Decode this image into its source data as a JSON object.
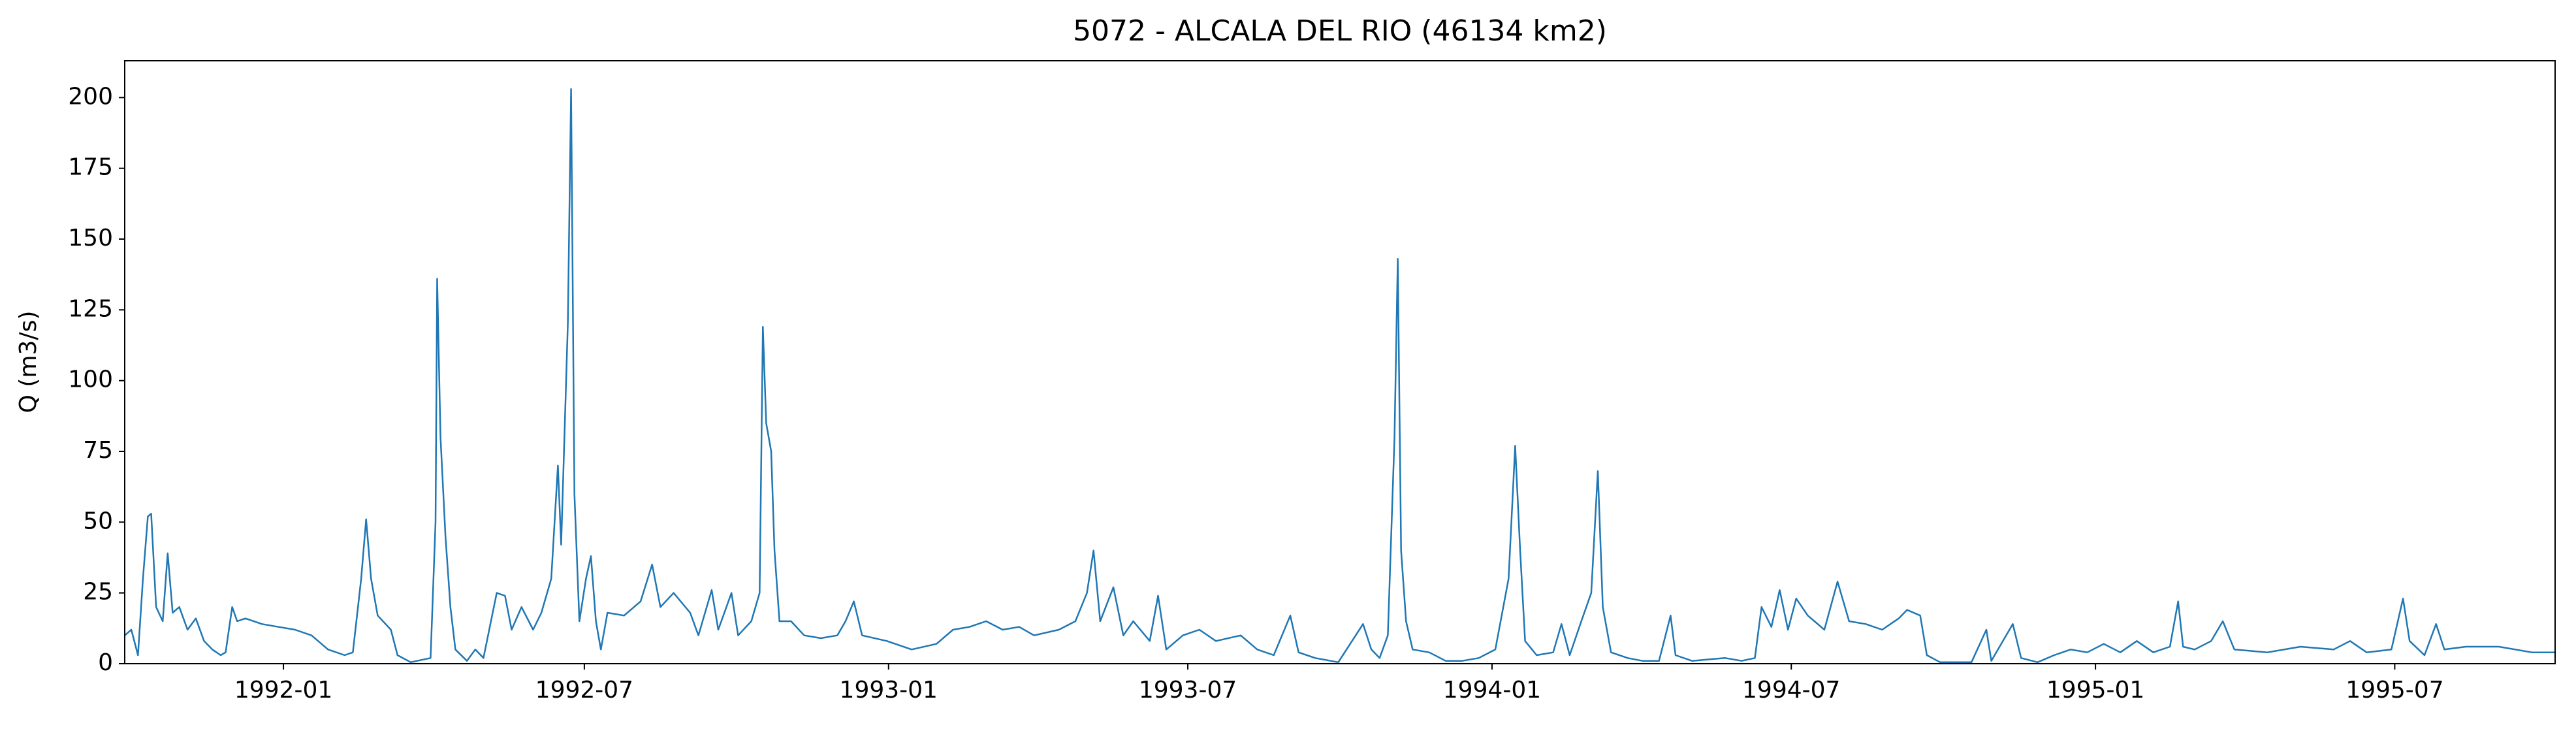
{
  "chart_data": {
    "type": "line",
    "title": "5072 - ALCALA DEL RIO (46134 km2)",
    "y_label": "Q (m3/s)",
    "color": "#1f77b4",
    "xlim": [
      "1991-09-27",
      "1995-10-06"
    ],
    "xticks": [
      {
        "value": "1992-01-01",
        "label": "1992-01"
      },
      {
        "value": "1992-07-01",
        "label": "1992-07"
      },
      {
        "value": "1993-01-01",
        "label": "1993-01"
      },
      {
        "value": "1993-07-01",
        "label": "1993-07"
      },
      {
        "value": "1994-01-01",
        "label": "1994-01"
      },
      {
        "value": "1994-07-01",
        "label": "1994-07"
      },
      {
        "value": "1995-01-01",
        "label": "1995-01"
      },
      {
        "value": "1995-07-01",
        "label": "1995-07"
      }
    ],
    "ylim": [
      0,
      213
    ],
    "yticks": [
      0,
      25,
      50,
      75,
      100,
      125,
      150,
      175,
      200
    ],
    "x": [
      "1991-09-27",
      "1991-10-01",
      "1991-10-05",
      "1991-10-08",
      "1991-10-11",
      "1991-10-13",
      "1991-10-16",
      "1991-10-20",
      "1991-10-23",
      "1991-10-26",
      "1991-10-30",
      "1991-11-04",
      "1991-11-09",
      "1991-11-14",
      "1991-11-19",
      "1991-11-24",
      "1991-11-27",
      "1991-12-01",
      "1991-12-04",
      "1991-12-09",
      "1991-12-19",
      "1991-12-29",
      "1992-01-08",
      "1992-01-18",
      "1992-01-28",
      "1992-02-07",
      "1992-02-12",
      "1992-02-17",
      "1992-02-20",
      "1992-02-23",
      "1992-02-27",
      "1992-03-06",
      "1992-03-10",
      "1992-03-18",
      "1992-03-30",
      "1992-04-02",
      "1992-04-03",
      "1992-04-05",
      "1992-04-08",
      "1992-04-11",
      "1992-04-14",
      "1992-04-21",
      "1992-04-26",
      "1992-05-01",
      "1992-05-09",
      "1992-05-14",
      "1992-05-18",
      "1992-05-24",
      "1992-05-31",
      "1992-06-05",
      "1992-06-11",
      "1992-06-15",
      "1992-06-17",
      "1992-06-21",
      "1992-06-23",
      "1992-06-25",
      "1992-06-28",
      "1992-07-02",
      "1992-07-05",
      "1992-07-08",
      "1992-07-11",
      "1992-07-15",
      "1992-07-25",
      "1992-08-04",
      "1992-08-11",
      "1992-08-16",
      "1992-08-24",
      "1992-09-03",
      "1992-09-08",
      "1992-09-16",
      "1992-09-20",
      "1992-09-28",
      "1992-10-02",
      "1992-10-10",
      "1992-10-15",
      "1992-10-17",
      "1992-10-19",
      "1992-10-22",
      "1992-10-24",
      "1992-10-27",
      "1992-11-03",
      "1992-11-11",
      "1992-11-21",
      "1992-12-01",
      "1992-12-06",
      "1992-12-11",
      "1992-12-16",
      "1992-12-31",
      "1993-01-15",
      "1993-01-30",
      "1993-02-09",
      "1993-02-19",
      "1993-03-01",
      "1993-03-11",
      "1993-03-21",
      "1993-03-30",
      "1993-04-14",
      "1993-04-24",
      "1993-05-01",
      "1993-05-05",
      "1993-05-09",
      "1993-05-17",
      "1993-05-23",
      "1993-05-29",
      "1993-06-08",
      "1993-06-13",
      "1993-06-18",
      "1993-06-28",
      "1993-07-08",
      "1993-07-18",
      "1993-08-02",
      "1993-08-12",
      "1993-08-22",
      "1993-09-01",
      "1993-09-06",
      "1993-09-16",
      "1993-09-30",
      "1993-10-15",
      "1993-10-20",
      "1993-10-25",
      "1993-10-30",
      "1993-11-03",
      "1993-11-05",
      "1993-11-07",
      "1993-11-10",
      "1993-11-14",
      "1993-11-24",
      "1993-12-04",
      "1993-12-14",
      "1993-12-24",
      "1994-01-03",
      "1994-01-11",
      "1994-01-15",
      "1994-01-18",
      "1994-01-21",
      "1994-01-28",
      "1994-02-07",
      "1994-02-12",
      "1994-02-17",
      "1994-02-24",
      "1994-03-02",
      "1994-03-06",
      "1994-03-09",
      "1994-03-14",
      "1994-03-24",
      "1994-04-02",
      "1994-04-12",
      "1994-04-19",
      "1994-04-22",
      "1994-05-02",
      "1994-05-22",
      "1994-06-01",
      "1994-06-09",
      "1994-06-13",
      "1994-06-19",
      "1994-06-24",
      "1994-06-29",
      "1994-07-04",
      "1994-07-11",
      "1994-07-21",
      "1994-07-29",
      "1994-08-05",
      "1994-08-15",
      "1994-08-25",
      "1994-09-04",
      "1994-09-09",
      "1994-09-17",
      "1994-09-21",
      "1994-09-29",
      "1994-10-18",
      "1994-10-27",
      "1994-10-30",
      "1994-11-12",
      "1994-11-17",
      "1994-11-27",
      "1994-12-07",
      "1994-12-17",
      "1994-12-27",
      "1995-01-06",
      "1995-01-16",
      "1995-01-26",
      "1995-02-05",
      "1995-02-15",
      "1995-02-20",
      "1995-02-23",
      "1995-03-02",
      "1995-03-12",
      "1995-03-19",
      "1995-03-26",
      "1995-04-15",
      "1995-05-05",
      "1995-05-25",
      "1995-06-04",
      "1995-06-14",
      "1995-06-29",
      "1995-07-06",
      "1995-07-10",
      "1995-07-19",
      "1995-07-26",
      "1995-07-31",
      "1995-08-13",
      "1995-09-02",
      "1995-09-22",
      "1995-10-06"
    ],
    "values": [
      10,
      12,
      3,
      30,
      52,
      53,
      20,
      15,
      39,
      18,
      20,
      12,
      16,
      8,
      5,
      3,
      4,
      20,
      15,
      16,
      14,
      13,
      12,
      10,
      5,
      3,
      4,
      30,
      51,
      30,
      17,
      12,
      3,
      0.5,
      2,
      50,
      136,
      80,
      45,
      20,
      5,
      1,
      5,
      2,
      25,
      24,
      12,
      20,
      12,
      18,
      30,
      70,
      42,
      120,
      203,
      60,
      15,
      30,
      38,
      15,
      5,
      18,
      17,
      22,
      35,
      20,
      25,
      18,
      10,
      26,
      12,
      25,
      10,
      15,
      25,
      119,
      85,
      75,
      40,
      15,
      15,
      10,
      9,
      10,
      15,
      22,
      10,
      8,
      5,
      7,
      12,
      13,
      15,
      12,
      13,
      10,
      12,
      15,
      25,
      40,
      15,
      27,
      10,
      15,
      8,
      24,
      5,
      10,
      12,
      8,
      10,
      5,
      3,
      17,
      4,
      2,
      0.5,
      14,
      5,
      2,
      10,
      80,
      143,
      40,
      15,
      5,
      4,
      1,
      1,
      2,
      5,
      30,
      77,
      40,
      8,
      3,
      4,
      14,
      3,
      15,
      25,
      68,
      20,
      4,
      2,
      1,
      1,
      17,
      3,
      1,
      2,
      1,
      2,
      20,
      13,
      26,
      12,
      23,
      17,
      12,
      29,
      15,
      14,
      12,
      16,
      19,
      17,
      3,
      0.5,
      0.5,
      12,
      1,
      14,
      2,
      0.5,
      3,
      5,
      4,
      7,
      4,
      8,
      4,
      6,
      22,
      6,
      5,
      8,
      15,
      5,
      4,
      6,
      5,
      8,
      4,
      5,
      23,
      8,
      3,
      14,
      5,
      6,
      6,
      4,
      4
    ]
  }
}
